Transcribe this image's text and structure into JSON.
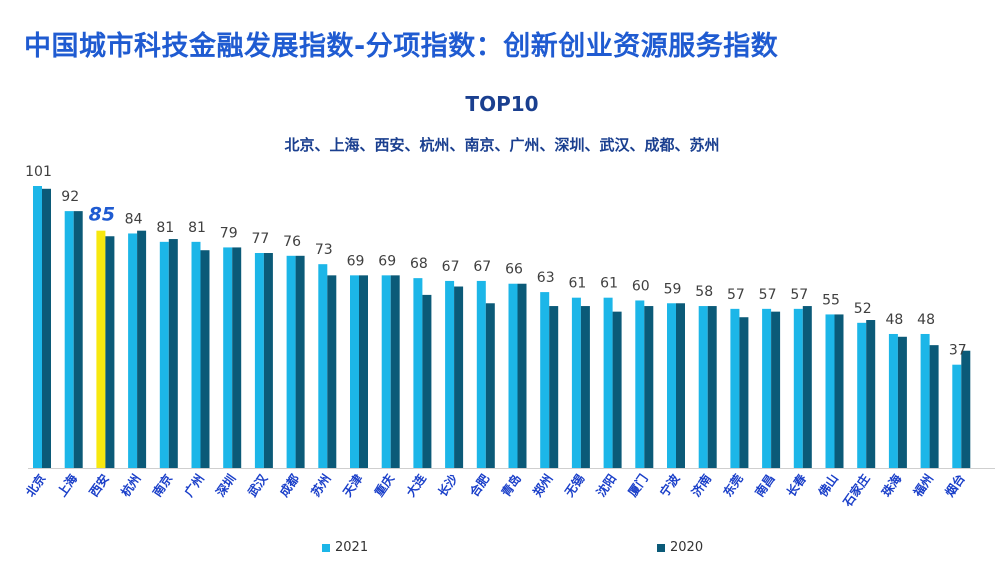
{
  "header": {
    "title": "中国城市科技金融发展指数-分项指数：创新创业资源服务指数",
    "subtitle": "TOP10",
    "top10_list": "北京、上海、西安、杭州、南京、广州、深圳、武汉、成都、苏州"
  },
  "colors": {
    "title": "#1f5bd1",
    "series_2021": "#1cb6e8",
    "series_2020": "#0b5a78",
    "highlight": "#f7e80f",
    "highlight_label": "#1f5bd1",
    "category_label": "#1a3fc9"
  },
  "chart_data": {
    "type": "bar",
    "categories": [
      "北京",
      "上海",
      "西安",
      "杭州",
      "南京",
      "广州",
      "深圳",
      "武汉",
      "成都",
      "苏州",
      "天津",
      "重庆",
      "大连",
      "长沙",
      "合肥",
      "青岛",
      "郑州",
      "无锡",
      "沈阳",
      "厦门",
      "宁波",
      "济南",
      "东莞",
      "南昌",
      "长春",
      "佛山",
      "石家庄",
      "珠海",
      "福州",
      "烟台"
    ],
    "labels": [
      "101",
      "92",
      "85",
      "84",
      "81",
      "81",
      "79",
      "77",
      "76",
      "73",
      "69",
      "69",
      "68",
      "67",
      "67",
      "66",
      "63",
      "61",
      "61",
      "60",
      "59",
      "58",
      "57",
      "57",
      "57",
      "55",
      "52",
      "48",
      "48",
      "37"
    ],
    "series": [
      {
        "name": "2021",
        "values": [
          101,
          92,
          85,
          84,
          81,
          81,
          79,
          77,
          76,
          73,
          69,
          69,
          68,
          67,
          67,
          66,
          63,
          61,
          61,
          60,
          59,
          58,
          57,
          57,
          57,
          55,
          52,
          48,
          48,
          37
        ]
      },
      {
        "name": "2020",
        "values": [
          100,
          92,
          83,
          85,
          82,
          78,
          79,
          77,
          76,
          69,
          69,
          69,
          62,
          65,
          59,
          66,
          58,
          58,
          56,
          58,
          59,
          58,
          54,
          56,
          58,
          55,
          53,
          47,
          44,
          42
        ]
      }
    ],
    "highlight_category": "西安",
    "ylim": [
      0,
      101
    ],
    "grid": false,
    "legend_position": "bottom"
  }
}
